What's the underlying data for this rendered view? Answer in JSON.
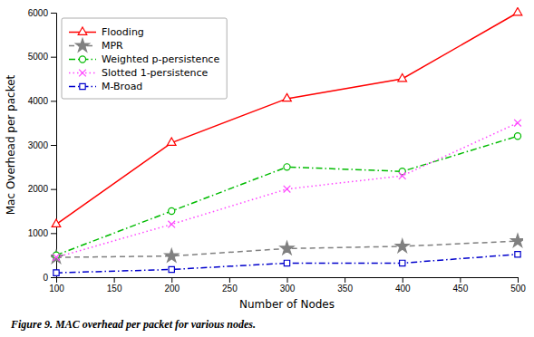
{
  "chart_data": {
    "type": "line",
    "x": [
      100,
      200,
      300,
      400,
      500
    ],
    "series": [
      {
        "name": "Flooding",
        "color": "#ff0000",
        "marker": "triangle-up",
        "line_style": "solid",
        "values": [
          1200,
          3050,
          4050,
          4500,
          6000
        ]
      },
      {
        "name": "MPR",
        "color": "#808080",
        "marker": "star",
        "line_style": "dashed",
        "values": [
          450,
          480,
          650,
          700,
          820
        ]
      },
      {
        "name": "Weighted p-persistence",
        "color": "#00bb00",
        "marker": "circle",
        "line_style": "dashdot",
        "values": [
          500,
          1500,
          2500,
          2400,
          3200
        ]
      },
      {
        "name": "Slotted 1-persistence",
        "color": "#ff44ff",
        "marker": "x",
        "line_style": "dotted",
        "values": [
          450,
          1200,
          2000,
          2300,
          3500
        ]
      },
      {
        "name": "M-Broad",
        "color": "#0000cc",
        "marker": "square",
        "line_style": "dashdot",
        "values": [
          100,
          175,
          320,
          320,
          520
        ]
      }
    ],
    "xlabel": "Number of Nodes",
    "ylabel": "Mac Overhead per packet",
    "caption": "Figure 9. MAC overhead per packet for various nodes.",
    "xlim": [
      100,
      500
    ],
    "ylim": [
      0,
      6000
    ],
    "xticks": [
      100,
      150,
      200,
      250,
      300,
      350,
      400,
      450,
      500
    ],
    "yticks": [
      0,
      1000,
      2000,
      3000,
      4000,
      5000,
      6000
    ],
    "grid": false,
    "legend": "upper left"
  }
}
